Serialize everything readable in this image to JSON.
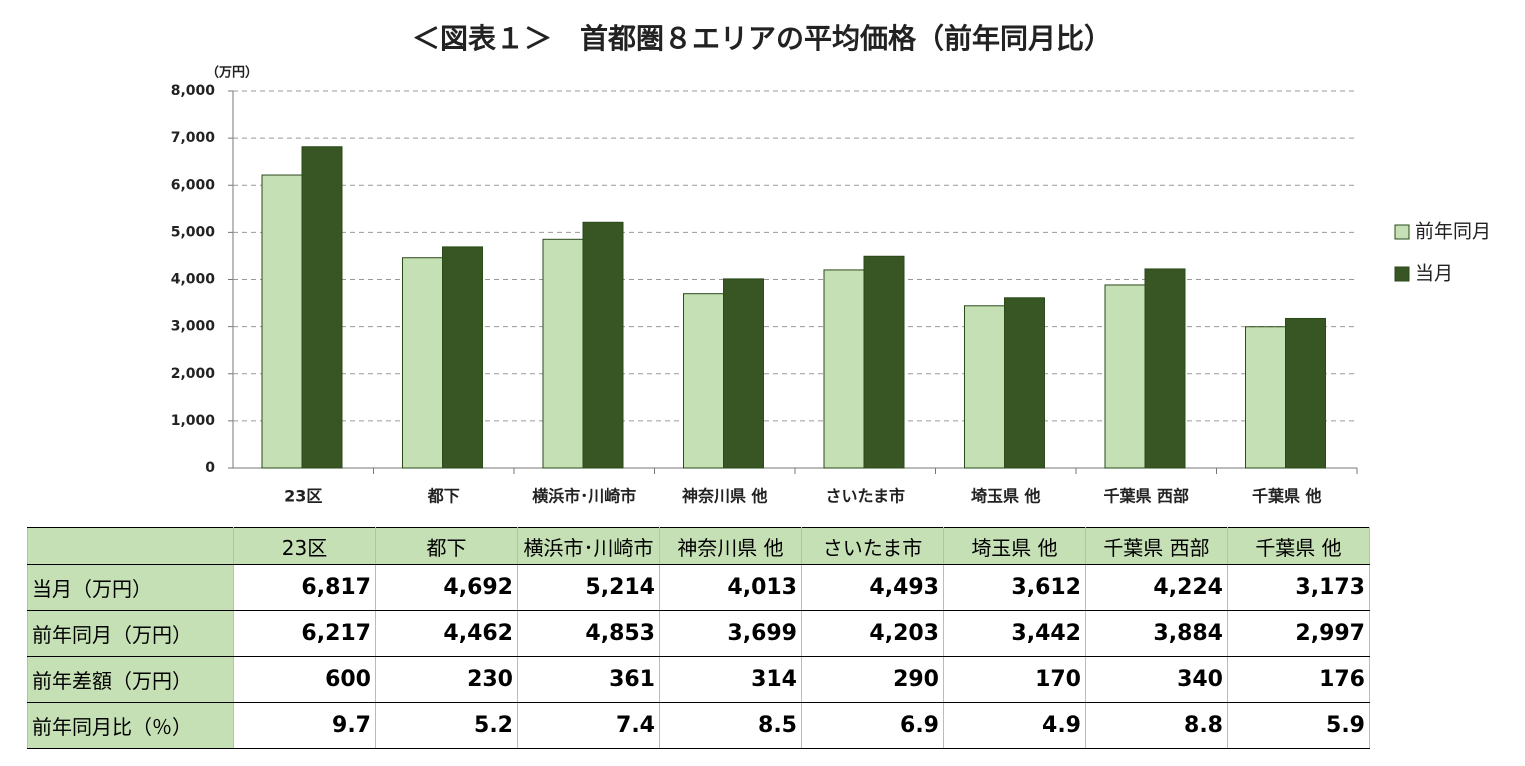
{
  "chart_data": {
    "type": "bar",
    "title": "＜図表１＞　首都圏８エリアの平均価格（前年同月比）",
    "y_label": "（万円）",
    "categories": [
      "23区",
      "都下",
      "横浜市･川崎市",
      "神奈川県 他",
      "さいたま市",
      "埼玉県 他",
      "千葉県 西部",
      "千葉県 他"
    ],
    "series": [
      {
        "name": "前年同月",
        "color": "#c5e0b4",
        "values": [
          6217,
          4462,
          4853,
          3699,
          4203,
          3442,
          3884,
          2997
        ]
      },
      {
        "name": "当月",
        "color": "#375623",
        "values": [
          6817,
          4692,
          5214,
          4013,
          4493,
          3612,
          4224,
          3173
        ]
      }
    ],
    "ylim": [
      0,
      8000
    ],
    "yticks": [
      0,
      {
        "value": 1000,
        "label": "1,000"
      },
      {
        "value": 2000,
        "label": "2,000"
      },
      {
        "value": 3000,
        "label": "3,000"
      },
      {
        "value": 4000,
        "label": "4,000"
      },
      {
        "value": 5000,
        "label": "5,000"
      },
      {
        "value": 6000,
        "label": "6,000"
      },
      {
        "value": 7000,
        "label": "7,000"
      },
      {
        "value": 8000,
        "label": "8,000"
      }
    ],
    "grid": true,
    "legend": "right"
  },
  "table": {
    "rows": [
      {
        "label": "当月（万円）",
        "cells": [
          "6,817",
          "4,692",
          "5,214",
          "4,013",
          "4,493",
          "3,612",
          "4,224",
          "3,173"
        ]
      },
      {
        "label": "前年同月（万円）",
        "cells": [
          "6,217",
          "4,462",
          "4,853",
          "3,699",
          "4,203",
          "3,442",
          "3,884",
          "2,997"
        ]
      },
      {
        "label": "前年差額（万円）",
        "cells": [
          "600",
          "230",
          "361",
          "314",
          "290",
          "170",
          "340",
          "176"
        ]
      },
      {
        "label": "前年同月比（％）",
        "cells": [
          "9.7",
          "5.2",
          "7.4",
          "8.5",
          "6.9",
          "4.9",
          "8.8",
          "5.9"
        ]
      }
    ]
  }
}
